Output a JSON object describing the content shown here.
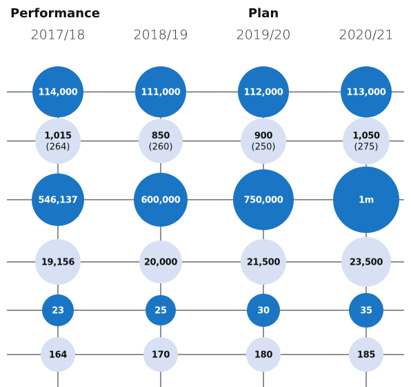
{
  "header": {
    "left": "Performance",
    "right": "Plan"
  },
  "columns": [
    "2017/18",
    "2018/19",
    "2019/20",
    "2020/21"
  ],
  "rows": [
    {
      "cells": [
        {
          "value": "114,000"
        },
        {
          "value": "111,000"
        },
        {
          "value": "112,000"
        },
        {
          "value": "113,000"
        }
      ]
    },
    {
      "cells": [
        {
          "value": "1,015",
          "sub": "(264)"
        },
        {
          "value": "850",
          "sub": "(260)"
        },
        {
          "value": "900",
          "sub": "(250)"
        },
        {
          "value": "1,050",
          "sub": "(275)"
        }
      ]
    },
    {
      "cells": [
        {
          "value": "546,137"
        },
        {
          "value": "600,000"
        },
        {
          "value": "750,000"
        },
        {
          "value": "1m"
        }
      ]
    },
    {
      "cells": [
        {
          "value": "19,156"
        },
        {
          "value": "20,000"
        },
        {
          "value": "21,500"
        },
        {
          "value": "23,500"
        }
      ]
    },
    {
      "cells": [
        {
          "value": "23"
        },
        {
          "value": "25"
        },
        {
          "value": "30"
        },
        {
          "value": "35"
        }
      ]
    },
    {
      "cells": [
        {
          "value": "164"
        },
        {
          "value": "170"
        },
        {
          "value": "180"
        },
        {
          "value": "185"
        }
      ]
    }
  ]
}
